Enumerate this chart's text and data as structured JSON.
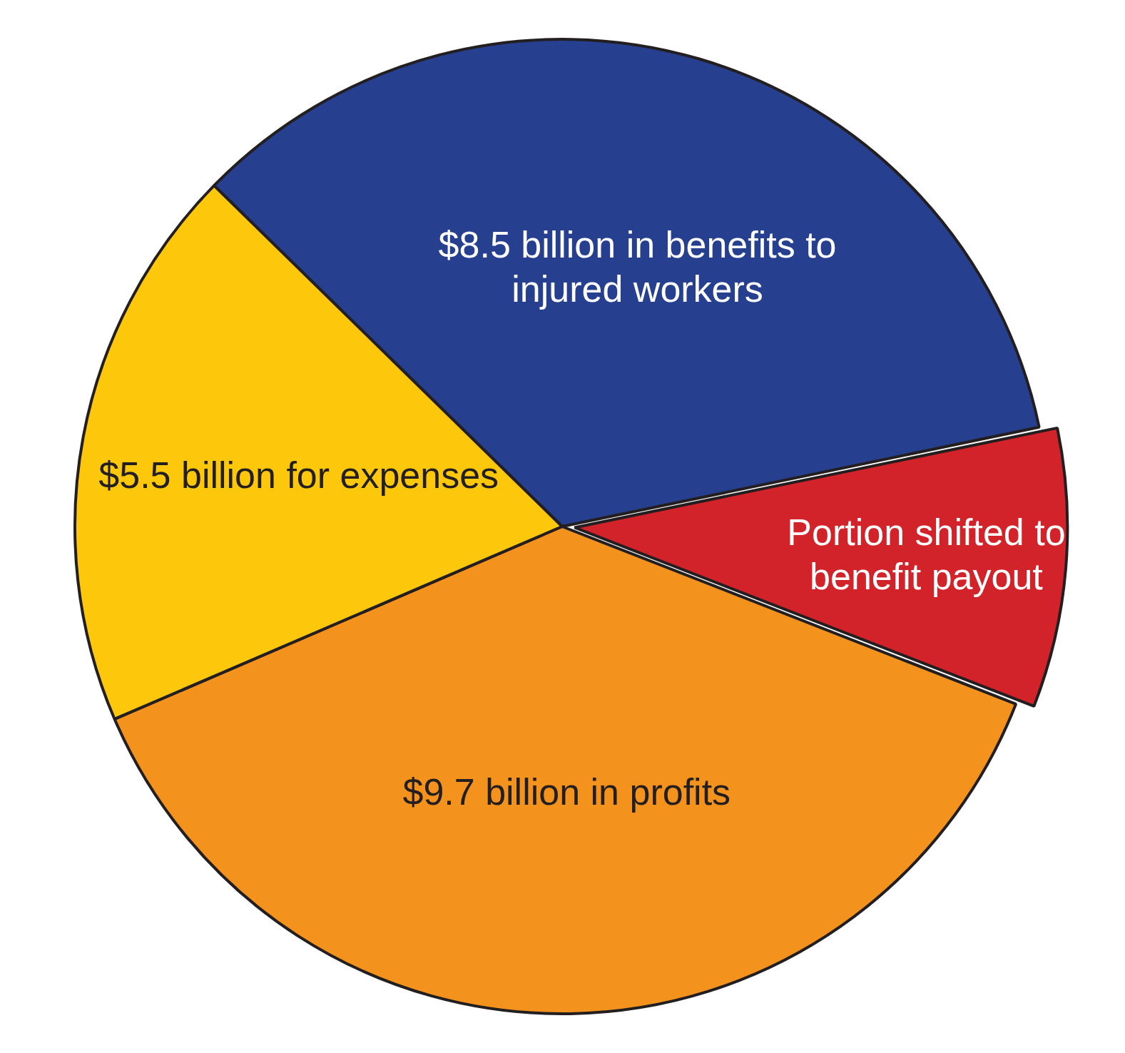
{
  "chart_data": {
    "type": "pie",
    "categories": [
      "$8.5 billion in benefits to injured workers",
      "Portion shifted to benefit payout",
      "$9.7 billion in profits",
      "$5.5 billion for expenses"
    ],
    "values": [
      34.4,
      9.2,
      37.6,
      18.8
    ],
    "colors": [
      "#263f8e",
      "#d2232a",
      "#f4921e",
      "#fdc70c"
    ],
    "legend": false
  }
}
